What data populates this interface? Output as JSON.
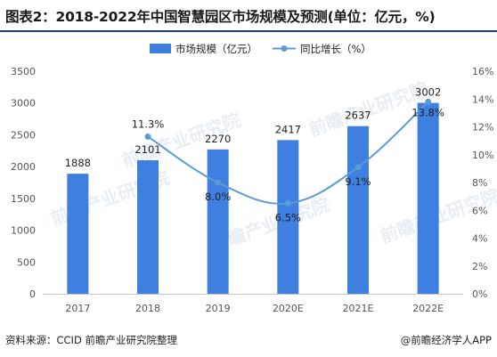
{
  "header": {
    "title": "图表2：2018-2022年中国智慧园区市场规模及预测(单位：亿元，%)"
  },
  "footer": {
    "source": "资料来源：CCID 前瞻产业研究院整理",
    "brand": "@前瞻经济学人APP"
  },
  "watermark": {
    "text": "前瞻产业研究院"
  },
  "colors": {
    "bar": "#3f7fe0",
    "line": "#5b9bd5",
    "axis_text": "#555555",
    "label_text": "#222222"
  },
  "chart_data": {
    "type": "bar",
    "categories": [
      "2017",
      "2018",
      "2019",
      "2020E",
      "2021E",
      "2022E"
    ],
    "series": [
      {
        "name": "市场规模（亿元）",
        "type": "bar",
        "axis": "left",
        "values": [
          1888,
          2101,
          2270,
          2417,
          2637,
          3002
        ],
        "labels": [
          "1888",
          "2101",
          "2270",
          "2417",
          "2637",
          "3002"
        ]
      },
      {
        "name": "同比增长（%）",
        "type": "line",
        "axis": "right",
        "values": [
          null,
          11.3,
          8.0,
          6.5,
          9.1,
          13.8
        ],
        "labels": [
          "",
          "11.3%",
          "8.0%",
          "6.5%",
          "9.1%",
          "13.8%"
        ]
      }
    ],
    "yleft": {
      "min": 0,
      "max": 3500,
      "ticks": [
        "0",
        "500",
        "1000",
        "1500",
        "2000",
        "2500",
        "3000",
        "3500"
      ]
    },
    "yright": {
      "min": 0,
      "max": 16,
      "ticks": [
        "0%",
        "2%",
        "4%",
        "6%",
        "8%",
        "10%",
        "12%",
        "14%",
        "16%"
      ]
    },
    "grid": false,
    "legend_position": "top-center"
  }
}
